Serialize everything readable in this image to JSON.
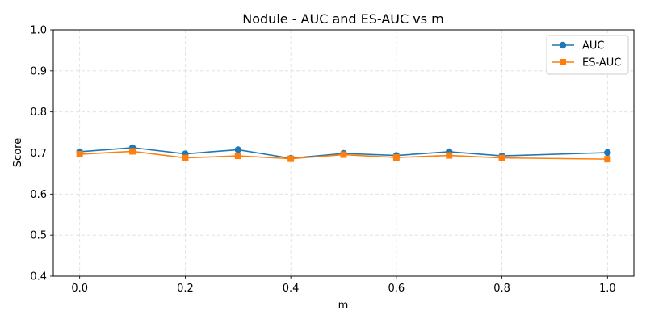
{
  "chart_data": {
    "type": "line",
    "title": "Nodule - AUC and ES-AUC vs m",
    "xlabel": "m",
    "ylabel": "Score",
    "xlim": [
      -0.05,
      1.05
    ],
    "ylim": [
      0.4,
      1.0
    ],
    "xticks": [
      "0.0",
      "0.2",
      "0.4",
      "0.6",
      "0.8",
      "1.0"
    ],
    "yticks": [
      "0.4",
      "0.5",
      "0.6",
      "0.7",
      "0.8",
      "0.9",
      "1.0"
    ],
    "grid": true,
    "legend_position": "top-right",
    "x": [
      0.0,
      0.1,
      0.2,
      0.3,
      0.4,
      0.5,
      0.6,
      0.7,
      0.8,
      1.0
    ],
    "series": [
      {
        "name": "AUC",
        "marker": "circle",
        "color": "#1f77b4",
        "values": [
          0.703,
          0.713,
          0.698,
          0.708,
          0.687,
          0.699,
          0.694,
          0.703,
          0.693,
          0.701
        ]
      },
      {
        "name": "ES-AUC",
        "marker": "square",
        "color": "#ff7f0e",
        "values": [
          0.697,
          0.704,
          0.688,
          0.693,
          0.686,
          0.696,
          0.689,
          0.694,
          0.688,
          0.685
        ]
      }
    ]
  }
}
